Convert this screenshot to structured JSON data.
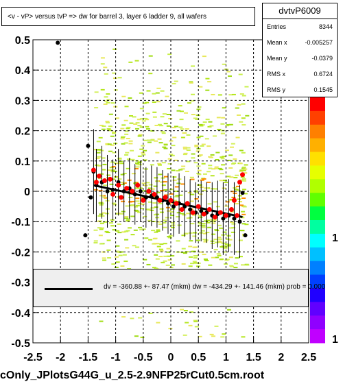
{
  "title": "<v - vP>       versus  tvP =>  dw for barrel 3, layer 6 ladder 9, all wafers",
  "stats": {
    "name": "dvtvP6009",
    "rows": [
      {
        "label": "Entries",
        "value": "8344"
      },
      {
        "label": "Mean x",
        "value": "-0.005257"
      },
      {
        "label": "Mean y",
        "value": "-0.0379"
      },
      {
        "label": "RMS x",
        "value": "0.6724"
      },
      {
        "label": "RMS y",
        "value": "0.1545"
      }
    ]
  },
  "fit_text": "dv = -360.88 +- 87.47 (mkm) dw = -434.29 +- 141.46 (mkm) prob = 0.000",
  "footer": "cOnly_JPlotsG44G_u_2.5-2.9NFP25rCut0.5cm.root",
  "colorbar_labels": [
    "1",
    "1"
  ],
  "colors": {
    "red": "#ff0000",
    "black": "#000000",
    "hist_green": "#b5e61d"
  },
  "chart_data": {
    "type": "scatter",
    "xlim": [
      -2.5,
      2.5
    ],
    "ylim": [
      -0.5,
      0.5
    ],
    "xticks": [
      "-2.5",
      "-2",
      "-1.5",
      "-1",
      "-0.5",
      "0",
      "0.5",
      "1",
      "1.5",
      "2",
      "2.5"
    ],
    "yticks": [
      "-0.5",
      "-0.4",
      "-0.3",
      "-0.2",
      "-0.1",
      "0",
      "0.1",
      "0.2",
      "0.3",
      "0.4",
      "0.5"
    ],
    "grid": true,
    "fit_line": {
      "x": [
        -1.4,
        1.3
      ],
      "y": [
        0.02,
        -0.085
      ]
    },
    "series": [
      {
        "color": "#000000",
        "points": [
          {
            "x": -2.05,
            "y": 0.49,
            "err": 0
          },
          {
            "x": -1.55,
            "y": -0.145,
            "err": 0
          },
          {
            "x": -1.5,
            "y": 0.15,
            "err": 0
          },
          {
            "x": -1.45,
            "y": -0.02,
            "err": 0
          },
          {
            "x": -1.4,
            "y": 0.065,
            "err": 0.14
          },
          {
            "x": -1.35,
            "y": 0.02,
            "err": 0.12
          },
          {
            "x": -1.25,
            "y": 0.03,
            "err": 0.12
          },
          {
            "x": -1.15,
            "y": 0.0,
            "err": 0.12
          },
          {
            "x": -1.05,
            "y": 0.005,
            "err": 0.1
          },
          {
            "x": -0.95,
            "y": 0.03,
            "err": 0.11
          },
          {
            "x": -0.85,
            "y": 0.0,
            "err": 0.1
          },
          {
            "x": -0.75,
            "y": 0.01,
            "err": 0.1
          },
          {
            "x": -0.65,
            "y": -0.01,
            "err": 0.1
          },
          {
            "x": -0.55,
            "y": 0.0,
            "err": 0.1
          },
          {
            "x": -0.45,
            "y": -0.02,
            "err": 0.1
          },
          {
            "x": -0.35,
            "y": -0.015,
            "err": 0.1
          },
          {
            "x": -0.25,
            "y": -0.02,
            "err": 0.1
          },
          {
            "x": -0.15,
            "y": -0.03,
            "err": 0.1
          },
          {
            "x": -0.05,
            "y": -0.04,
            "err": 0.1
          },
          {
            "x": 0.05,
            "y": -0.05,
            "err": 0.1
          },
          {
            "x": 0.15,
            "y": -0.04,
            "err": 0.1
          },
          {
            "x": 0.25,
            "y": -0.05,
            "err": 0.1
          },
          {
            "x": 0.35,
            "y": -0.06,
            "err": 0.1
          },
          {
            "x": 0.45,
            "y": -0.07,
            "err": 0.1
          },
          {
            "x": 0.55,
            "y": -0.065,
            "err": 0.1
          },
          {
            "x": 0.65,
            "y": -0.07,
            "err": 0.1
          },
          {
            "x": 0.75,
            "y": -0.08,
            "err": 0.11
          },
          {
            "x": 0.85,
            "y": -0.075,
            "err": 0.11
          },
          {
            "x": 0.95,
            "y": -0.09,
            "err": 0.12
          },
          {
            "x": 1.05,
            "y": -0.08,
            "err": 0.12
          },
          {
            "x": 1.15,
            "y": -0.09,
            "err": 0.12
          },
          {
            "x": 1.25,
            "y": -0.1,
            "err": 0.12
          },
          {
            "x": 1.3,
            "y": -0.005,
            "err": 0
          },
          {
            "x": 1.35,
            "y": -0.145,
            "err": 0
          }
        ]
      },
      {
        "color": "#ff0000",
        "points": [
          {
            "x": -1.4,
            "y": 0.07
          },
          {
            "x": -1.35,
            "y": 0.03
          },
          {
            "x": -1.3,
            "y": 0.05
          },
          {
            "x": -1.2,
            "y": 0.035
          },
          {
            "x": -1.1,
            "y": 0.04
          },
          {
            "x": -1.05,
            "y": -0.01
          },
          {
            "x": -0.95,
            "y": 0.02
          },
          {
            "x": -0.9,
            "y": -0.02
          },
          {
            "x": -0.8,
            "y": 0.01
          },
          {
            "x": -0.7,
            "y": 0.0
          },
          {
            "x": -0.6,
            "y": 0.02
          },
          {
            "x": -0.5,
            "y": -0.03
          },
          {
            "x": -0.4,
            "y": 0.0
          },
          {
            "x": -0.3,
            "y": -0.01
          },
          {
            "x": -0.2,
            "y": -0.03
          },
          {
            "x": -0.1,
            "y": -0.02
          },
          {
            "x": 0.0,
            "y": -0.03
          },
          {
            "x": 0.1,
            "y": -0.04
          },
          {
            "x": 0.2,
            "y": -0.06
          },
          {
            "x": 0.3,
            "y": -0.04
          },
          {
            "x": 0.4,
            "y": -0.07
          },
          {
            "x": 0.5,
            "y": -0.05
          },
          {
            "x": 0.6,
            "y": -0.075
          },
          {
            "x": 0.7,
            "y": -0.06
          },
          {
            "x": 0.8,
            "y": -0.085
          },
          {
            "x": 0.9,
            "y": -0.07
          },
          {
            "x": 1.0,
            "y": -0.08
          },
          {
            "x": 1.1,
            "y": -0.06
          },
          {
            "x": 1.15,
            "y": -0.03
          },
          {
            "x": 1.2,
            "y": -0.08
          },
          {
            "x": 1.25,
            "y": 0.03
          },
          {
            "x": 1.3,
            "y": 0.055
          }
        ]
      }
    ]
  }
}
